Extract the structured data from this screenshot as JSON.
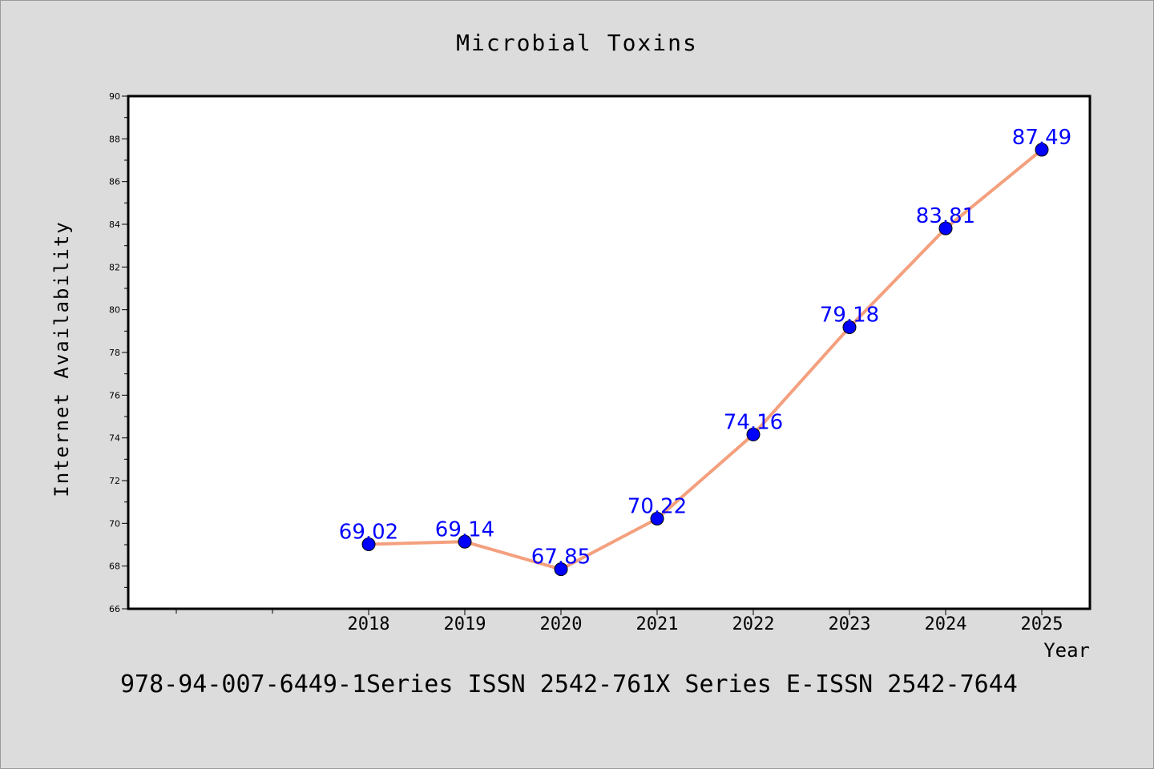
{
  "chart_data": {
    "type": "line",
    "title": "Microbial Toxins",
    "xlabel": "Year",
    "ylabel": "Internet Availability",
    "x": [
      "2018",
      "2019",
      "2020",
      "2021",
      "2022",
      "2023",
      "2024",
      "2025"
    ],
    "series": [
      {
        "values": [
          69.02,
          69.14,
          67.85,
          70.22,
          74.16,
          79.18,
          83.81,
          87.49
        ]
      }
    ],
    "data_labels": [
      "69.02",
      "69.14",
      "67.85",
      "70.22",
      "74.16",
      "79.18",
      "83.81",
      "87.49"
    ],
    "ylim": [
      66,
      90
    ],
    "y_major_ticks": [
      "66",
      "68",
      "70",
      "72",
      "74",
      "76",
      "78",
      "80",
      "82",
      "84",
      "86",
      "88",
      "90"
    ],
    "grid": false,
    "line_color": "#f4a07e",
    "marker_color": "#0000ff",
    "label_color": "#0000ff",
    "footnote": "978-94-007-6449-1Series ISSN 2542-761X Series E-ISSN 2542-7644"
  }
}
